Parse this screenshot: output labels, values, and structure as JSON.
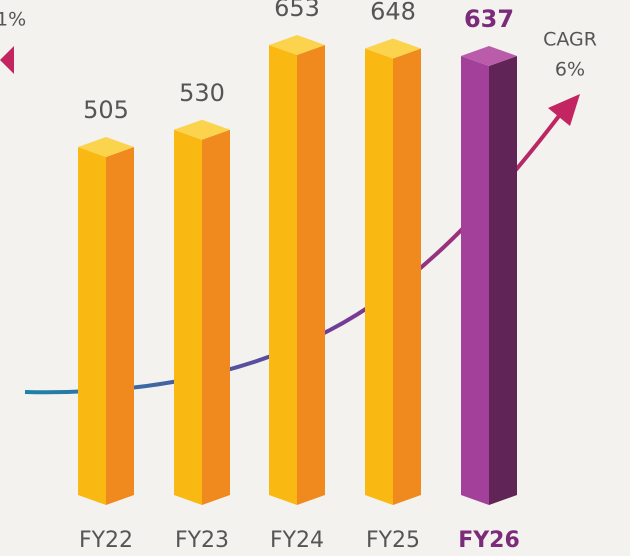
{
  "chart_data": {
    "type": "bar",
    "categories": [
      "FY22",
      "FY23",
      "FY24",
      "FY25",
      "FY26"
    ],
    "values": [
      505,
      530,
      653,
      648,
      637
    ],
    "colors": [
      "#f9b812",
      "#f9b812",
      "#f9b812",
      "#f9b812",
      "#a3409a"
    ],
    "side_colors": [
      "#f08a1e",
      "#f08a1e",
      "#f08a1e",
      "#f08a1e",
      "#612456"
    ],
    "top_colors": [
      "#fcd34c",
      "#fcd34c",
      "#fcd34c",
      "#fcd34c",
      "#bb5cab"
    ],
    "label_colors": [
      "#555555",
      "#555555",
      "#555555",
      "#555555",
      "#7b2b79"
    ],
    "annotations": [
      "CAGR",
      "6%",
      "1%"
    ]
  }
}
